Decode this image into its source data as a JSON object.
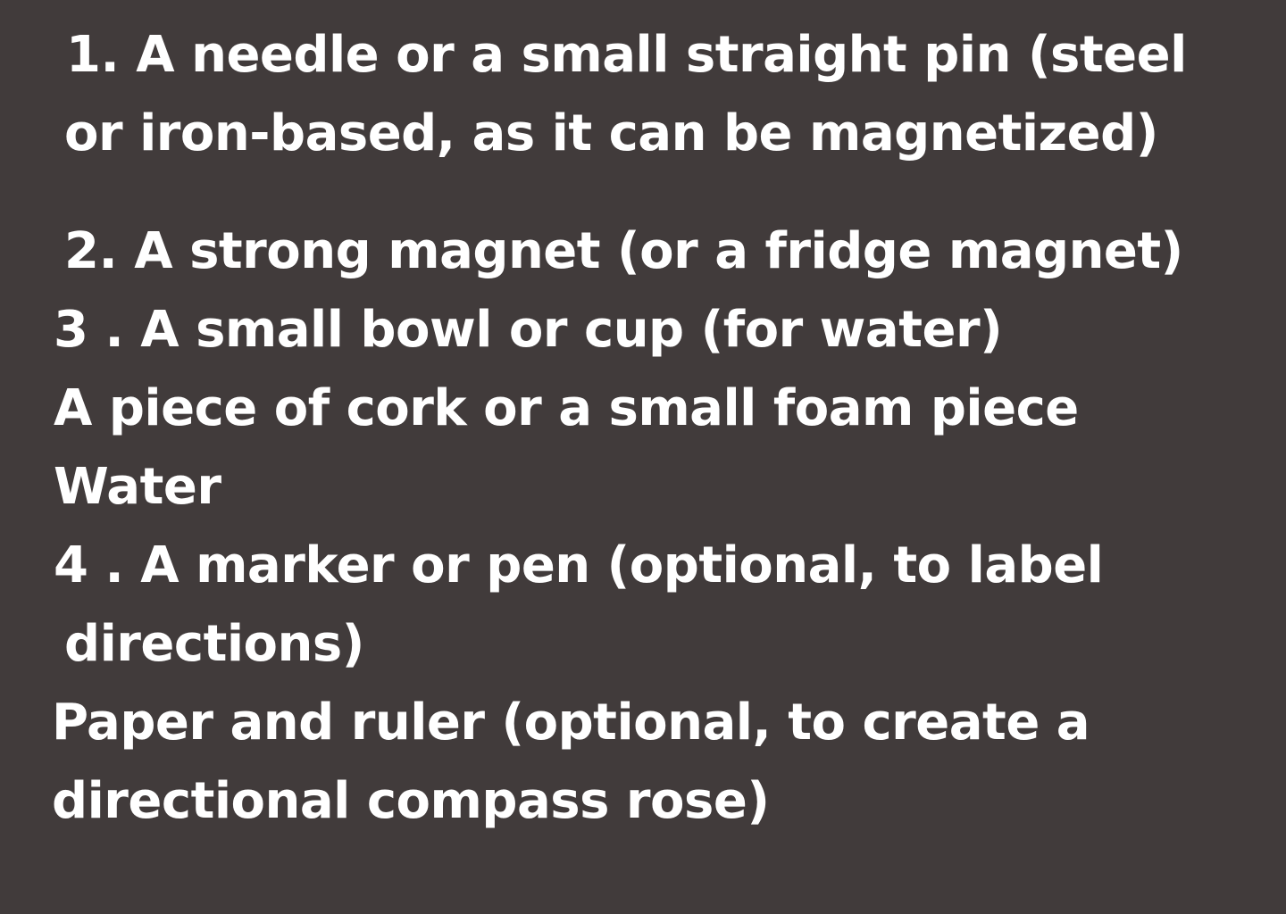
{
  "colors": {
    "background": "#413b3b",
    "text": "#ffffff"
  },
  "lines": [
    " 1.  A needle or a small straight pin (steel",
    "or iron-based, as it can be magnetized)",
    "2.  A strong magnet (or a fridge magnet)",
    "3 . A small bowl or cup (for water)",
    "A piece of cork or a small foam piece",
    "Water",
    "4 . A marker or pen (optional, to label",
    "directions)",
    "Paper and ruler (optional, to create a",
    "directional compass rose)"
  ]
}
